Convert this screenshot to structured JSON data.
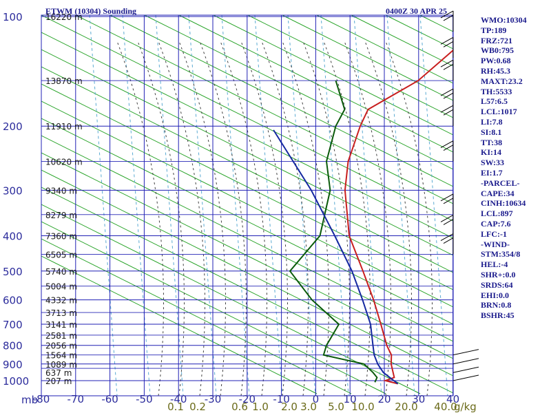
{
  "header": {
    "station": "ETWM (10304) Sounding",
    "time": "0400Z 30 APR 25"
  },
  "axis_unit_label": "mb",
  "mix_unit_label": "g/kg",
  "colors": {
    "background": "#ffffff",
    "grid": "#1f1fb4",
    "dry_adiabat": "#20a020",
    "moist_adiabat": "#404040",
    "mixing_ratio": "#5aaad2",
    "temperature": "#c81e1e",
    "dewpoint": "#0a5a0a",
    "parcel": "#1428a0",
    "wind_barb": "#000000"
  },
  "side_panel": [
    "WMO:10304",
    "TP:189",
    "FRZ:721",
    "WB0:795",
    "PW:0.68",
    "RH:45.3",
    "MAXT:23.2",
    "TH:5533",
    "L57:6.5",
    "LCL:1017",
    "LI:7.8",
    "SI:8.1",
    "TT:38",
    "KI:14",
    "SW:33",
    "EI:1.7",
    "-PARCEL-",
    "CAPE:34",
    "CINH:10634",
    "LCL:897",
    "CAP:7.6",
    "LFC:-1",
    "-WIND-",
    "STM:354/8",
    "HEL:-4",
    "SHR+:0.0",
    "SRDS:64",
    "EHI:0.0",
    "BRN:0.8",
    "BSHR:45"
  ],
  "chart_data": {
    "type": "line",
    "title": "ETWM (10304) Sounding",
    "subtitle": "0400Z 30 APR 25",
    "xlabel": "",
    "ylabel": "mb",
    "x_scale": "skewed",
    "y_scale": "log",
    "grid": true,
    "xlim": [
      -80,
      0
    ],
    "ylim": [
      1000,
      100
    ],
    "x_ticks": [
      -80,
      -70,
      -60,
      -50,
      -40,
      -30,
      -20,
      -10,
      0,
      10,
      20,
      30,
      40
    ],
    "pressure_ticks": [
      100,
      200,
      300,
      400,
      500,
      600,
      700,
      800,
      900,
      1000
    ],
    "height_labels": [
      {
        "p": 100,
        "text": "16220 m"
      },
      {
        "p": 150,
        "text": "13870 m"
      },
      {
        "p": 200,
        "text": "11910 m"
      },
      {
        "p": 250,
        "text": "10620 m"
      },
      {
        "p": 300,
        "text": "9340 m"
      },
      {
        "p": 350,
        "text": "8279 m"
      },
      {
        "p": 400,
        "text": "7360 m"
      },
      {
        "p": 450,
        "text": "6505 m"
      },
      {
        "p": 500,
        "text": "5740 m"
      },
      {
        "p": 550,
        "text": "5004 m"
      },
      {
        "p": 600,
        "text": "4332 m"
      },
      {
        "p": 650,
        "text": "3713 m"
      },
      {
        "p": 700,
        "text": "3141 m"
      },
      {
        "p": 750,
        "text": "2581 m"
      },
      {
        "p": 800,
        "text": "2056 m"
      },
      {
        "p": 850,
        "text": "1564 m"
      },
      {
        "p": 900,
        "text": "1089 m"
      },
      {
        "p": 950,
        "text": "637 m"
      },
      {
        "p": 1000,
        "text": "207 m"
      }
    ],
    "mixing_ratio_labels": [
      "0.1",
      "0.2",
      "0.6",
      "1.0",
      "2.0",
      "3.0",
      "5.0",
      "10.0",
      "20.0",
      "40.0"
    ],
    "series": [
      {
        "name": "Temperature",
        "points": [
          {
            "p": 1020,
            "t": 14.8
          },
          {
            "p": 1000,
            "t": 10.3
          },
          {
            "p": 980,
            "t": 12.0
          },
          {
            "p": 900,
            "t": 7.4
          },
          {
            "p": 850,
            "t": 5.0
          },
          {
            "p": 800,
            "t": 1.0
          },
          {
            "p": 700,
            "t": -6.5
          },
          {
            "p": 600,
            "t": -15.3
          },
          {
            "p": 500,
            "t": -26.3
          },
          {
            "p": 400,
            "t": -40.0
          },
          {
            "p": 300,
            "t": -53.7
          },
          {
            "p": 250,
            "t": -60.7
          },
          {
            "p": 200,
            "t": -66.9
          },
          {
            "p": 180,
            "t": -69.2
          },
          {
            "p": 150,
            "t": -62.6
          },
          {
            "p": 100,
            "t": -58.7
          }
        ]
      },
      {
        "name": "Dewpoint",
        "points": [
          {
            "p": 1010,
            "t": 7.7
          },
          {
            "p": 980,
            "t": 7.0
          },
          {
            "p": 950,
            "t": 4.5
          },
          {
            "p": 900,
            "t": -0.5
          },
          {
            "p": 850,
            "t": -14.7
          },
          {
            "p": 800,
            "t": -16.5
          },
          {
            "p": 700,
            "t": -18.7
          },
          {
            "p": 600,
            "t": -33.2
          },
          {
            "p": 500,
            "t": -47.5
          },
          {
            "p": 400,
            "t": -48.5
          },
          {
            "p": 300,
            "t": -58.0
          },
          {
            "p": 250,
            "t": -67.0
          },
          {
            "p": 200,
            "t": -74.0
          },
          {
            "p": 180,
            "t": -76.0
          },
          {
            "p": 150,
            "t": -86.5
          }
        ]
      },
      {
        "name": "Parcel",
        "points": [
          {
            "p": 1020,
            "t": 14.8
          },
          {
            "p": 950,
            "t": 7.5
          },
          {
            "p": 900,
            "t": 3.5
          },
          {
            "p": 850,
            "t": 0.0
          },
          {
            "p": 800,
            "t": -3.0
          },
          {
            "p": 700,
            "t": -9.5
          },
          {
            "p": 600,
            "t": -18.5
          },
          {
            "p": 500,
            "t": -29.5
          },
          {
            "p": 400,
            "t": -44.2
          },
          {
            "p": 300,
            "t": -63.5
          },
          {
            "p": 205,
            "t": -91.0
          }
        ]
      }
    ],
    "wind_barb_levels": [
      {
        "p": 1000
      },
      {
        "p": 950
      },
      {
        "p": 900
      },
      {
        "p": 850
      },
      {
        "p": 450
      },
      {
        "p": 400
      },
      {
        "p": 350
      },
      {
        "p": 250
      },
      {
        "p": 200
      },
      {
        "p": 180
      },
      {
        "p": 150
      },
      {
        "p": 130
      },
      {
        "p": 110
      }
    ]
  }
}
